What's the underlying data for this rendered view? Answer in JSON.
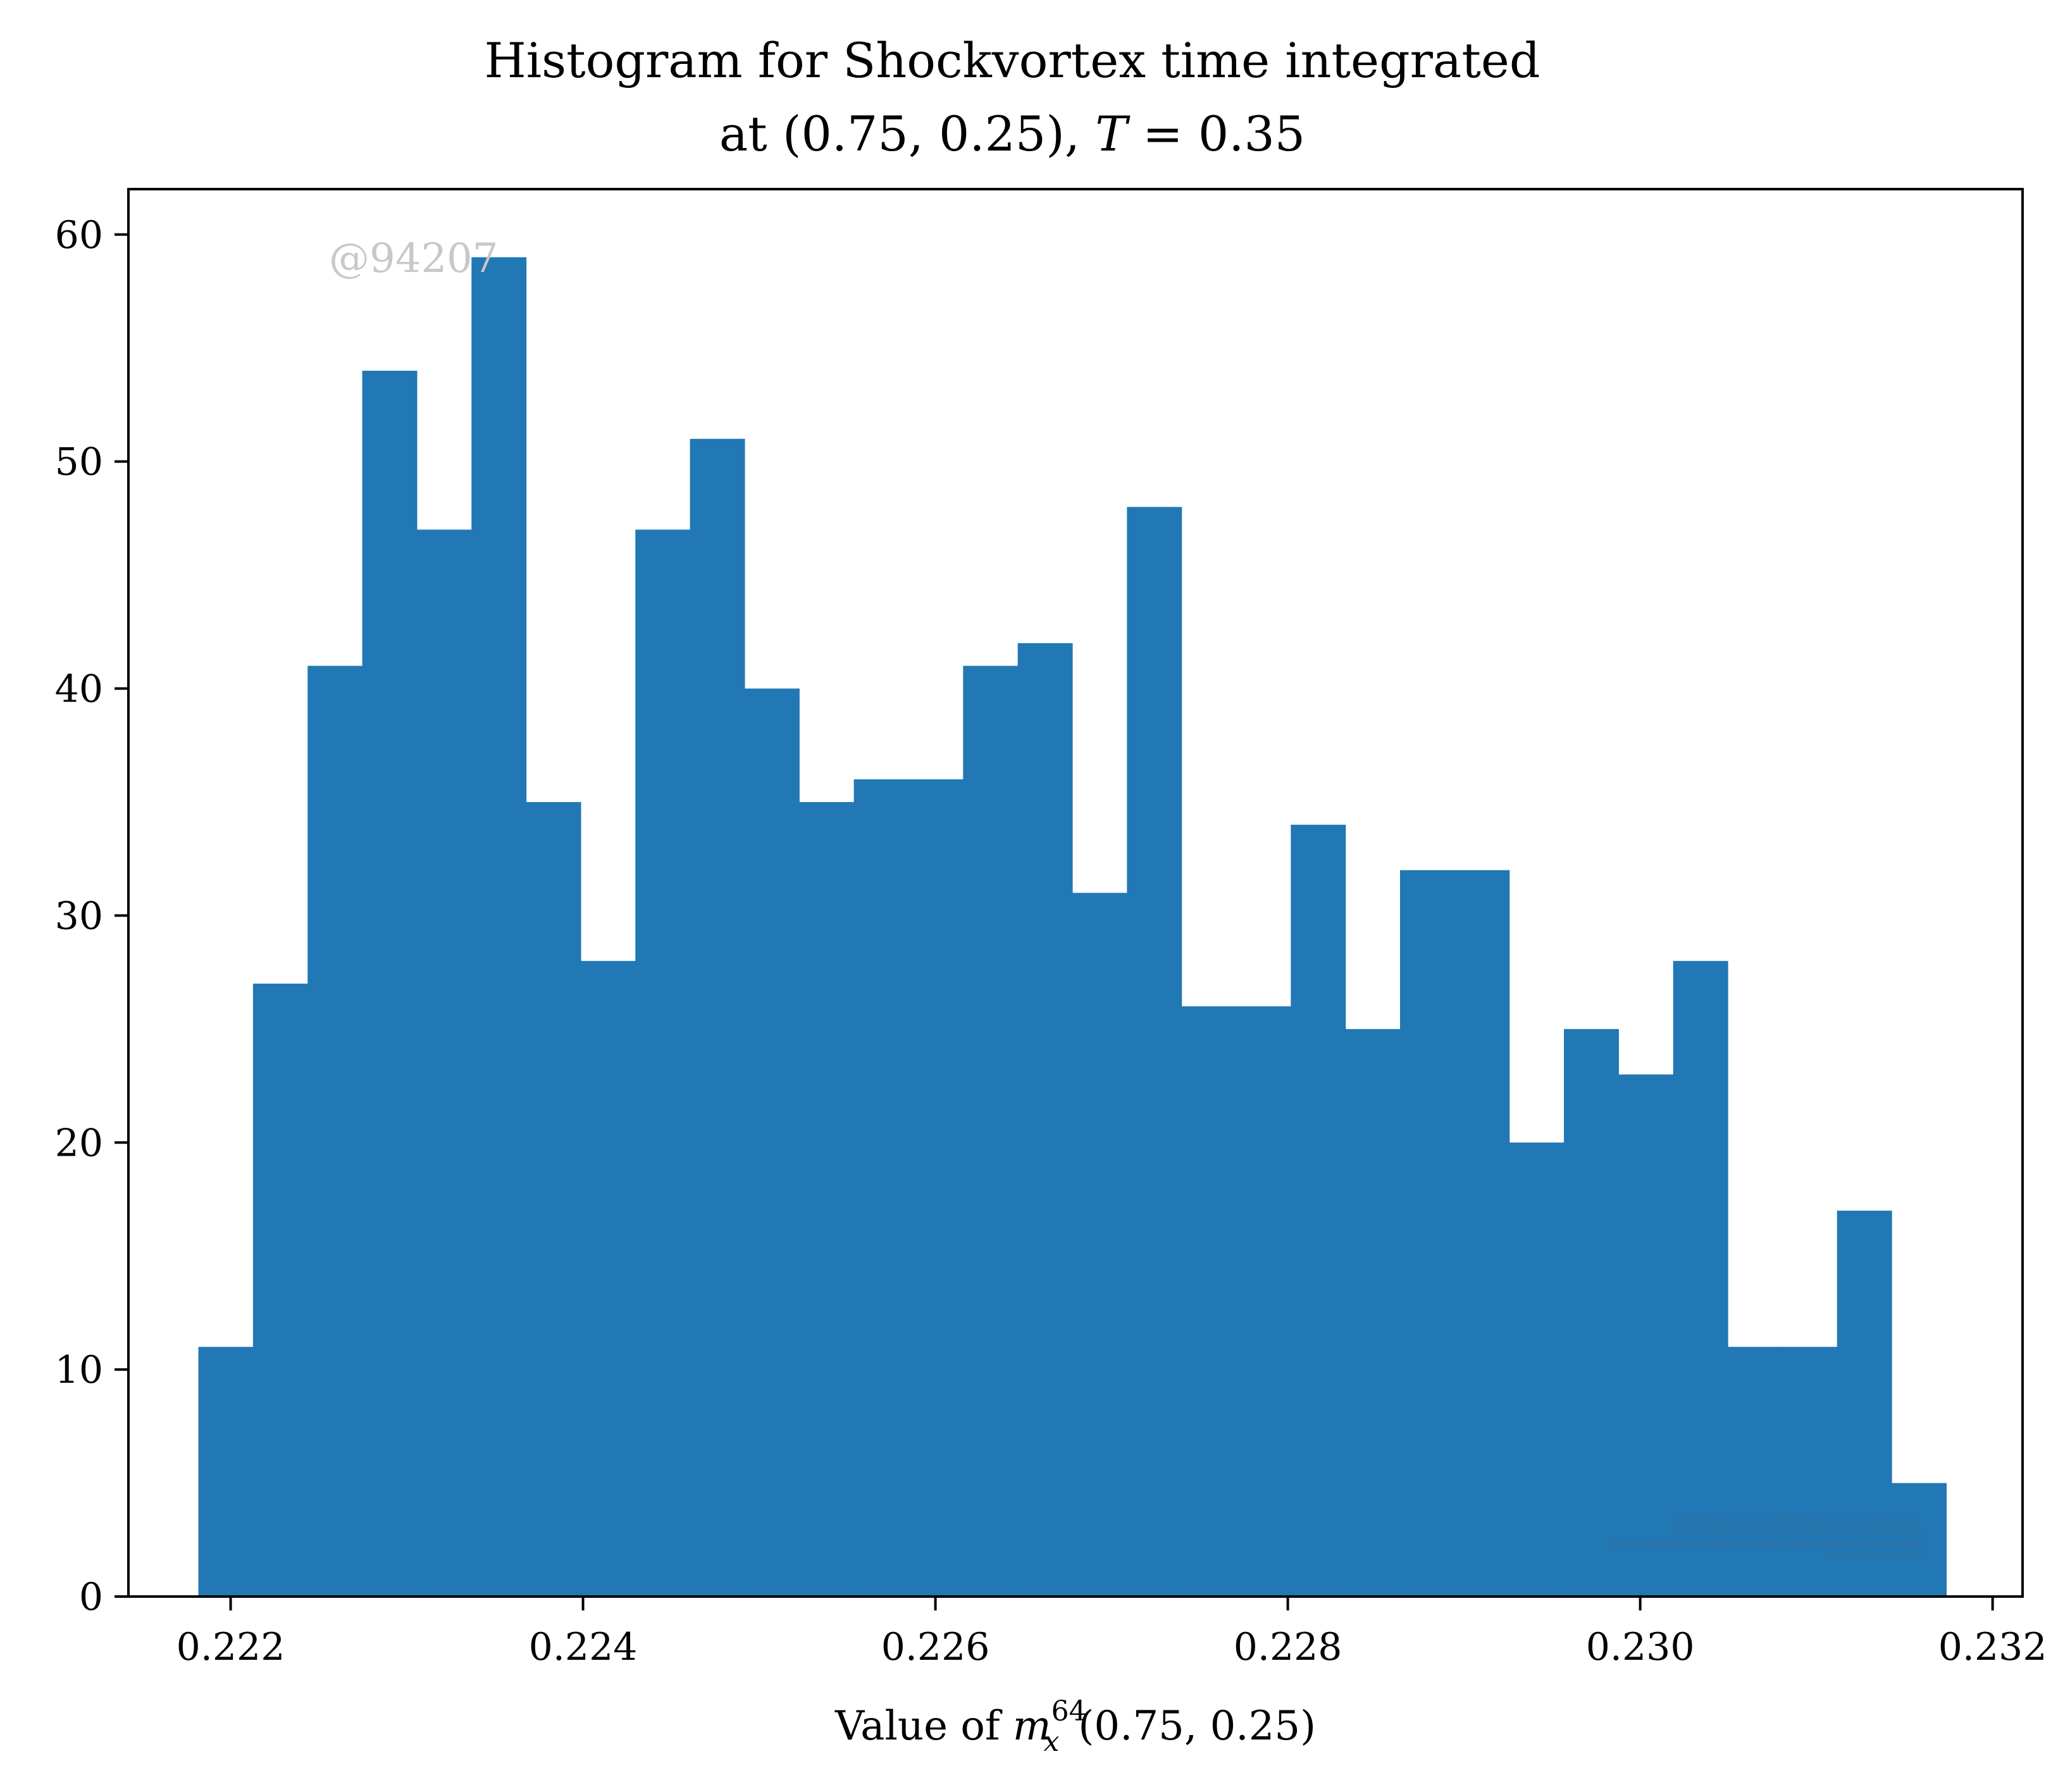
{
  "colors": {
    "bar": "#2178b4",
    "axis": "#000000",
    "watermark": "#c8c8c8",
    "footnote": "#3a6e99"
  },
  "chart_data": {
    "type": "bar",
    "title_line1": "Histogram for Shockvortex time integrated",
    "title_line2": "at (0.75, 0.25), T = 0.35",
    "xlabel": "Value of m_x^64(0.75, 0.25)",
    "ylabel": "",
    "xlim": [
      0.22142,
      0.23217
    ],
    "ylim": [
      0,
      62
    ],
    "x_ticks": [
      0.222,
      0.224,
      0.226,
      0.228,
      0.23,
      0.232
    ],
    "x_tick_labels": [
      "0.222",
      "0.224",
      "0.226",
      "0.228",
      "0.230",
      "0.232"
    ],
    "y_ticks": [
      0,
      10,
      20,
      30,
      40,
      50,
      60
    ],
    "y_tick_labels": [
      "0",
      "10",
      "20",
      "30",
      "40",
      "50",
      "60"
    ],
    "bin_start": 0.221817,
    "bin_width": 0.00031,
    "values": [
      11,
      27,
      41,
      54,
      47,
      59,
      35,
      28,
      47,
      51,
      40,
      35,
      36,
      36,
      41,
      42,
      31,
      48,
      26,
      26,
      34,
      25,
      32,
      32,
      20,
      25,
      23,
      28,
      11,
      11,
      17,
      5
    ],
    "grid": false,
    "legend": "none"
  },
  "watermark": "@94207",
  "footnote_lines": [
    "By Kjetil Olsen Lye @ ETHZ <kjetil.o.lye@gmail.com>",
    "Commit: 942074432c6b232b4594553547-7247f6f8494a",
    "Repo: git@github.com:kjetil-lye/single_sample_structure_functions.git",
    "Hostname: lo-a2-020"
  ]
}
